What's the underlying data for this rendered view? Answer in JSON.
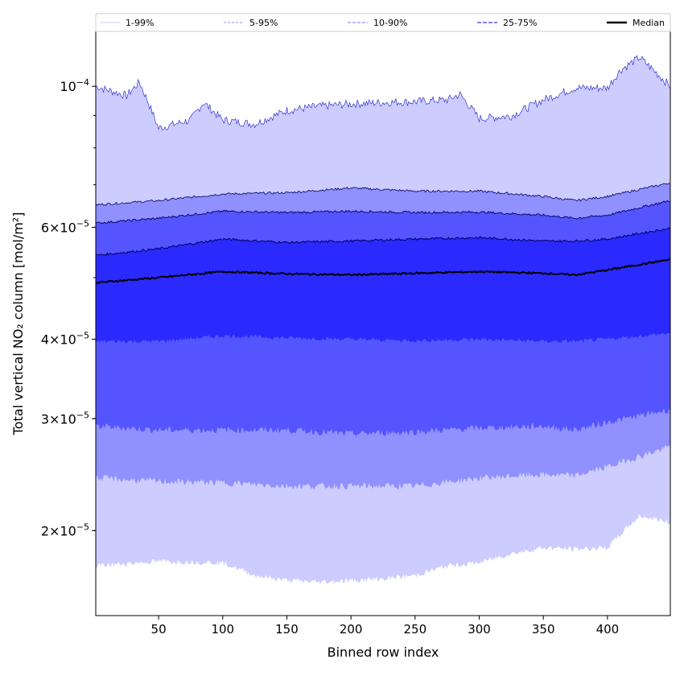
{
  "chart_data": {
    "type": "area",
    "title": "",
    "xlabel": "Binned row index",
    "ylabel": "Total vertical NO₂ column [mol/m²]",
    "yscale": "log",
    "xlim": [
      1,
      449
    ],
    "ylim": [
      1.47e-05,
      0.000122
    ],
    "xticks": [
      50,
      100,
      150,
      200,
      250,
      300,
      350,
      400
    ],
    "yticks": [
      {
        "v": 0.0001,
        "m": "",
        "e": "−4",
        "label": "10^-4"
      },
      {
        "v": 6e-05,
        "m": "6",
        "e": "−5",
        "label": "6×10^-5"
      },
      {
        "v": 4e-05,
        "m": "4",
        "e": "−5",
        "label": "4×10^-5"
      },
      {
        "v": 3e-05,
        "m": "3",
        "e": "−5",
        "label": "3×10^-5"
      },
      {
        "v": 2e-05,
        "m": "2",
        "e": "−5",
        "label": "2×10^-5"
      }
    ],
    "legend": {
      "placement": "top",
      "entries": [
        "1-99%",
        "5-95%",
        "10-90%",
        "25-75%",
        "Median"
      ]
    },
    "colors": {
      "band_1_99": "#ccccff",
      "band_5_95": "#9090ff",
      "band_10_90": "#5555ff",
      "band_25_75": "#2a2aff",
      "median": "#000000",
      "p99_line": "#1a1acc",
      "edge_line": "#000066"
    },
    "series": [
      {
        "name": "p99",
        "x": [
          1,
          25,
          35,
          50,
          75,
          85,
          100,
          125,
          150,
          175,
          200,
          225,
          250,
          275,
          285,
          300,
          325,
          350,
          375,
          400,
          410,
          425,
          449
        ],
        "values": [
          0.0001,
          9.66e-05,
          0.0001015,
          8.59e-05,
          8.85e-05,
          9.43e-05,
          8.85e-05,
          8.72e-05,
          9.16e-05,
          9.3e-05,
          9.38e-05,
          9.43e-05,
          9.46e-05,
          9.52e-05,
          9.71e-05,
          8.9e-05,
          8.98e-05,
          9.52e-05,
          9.94e-05,
          9.94e-05,
          0.000106,
          0.000111,
          0.0001
        ]
      },
      {
        "name": "p95",
        "x": [
          1,
          50,
          100,
          150,
          200,
          250,
          300,
          350,
          375,
          400,
          449
        ],
        "values": [
          6.51e-05,
          6.61e-05,
          6.77e-05,
          6.8e-05,
          6.92e-05,
          6.84e-05,
          6.84e-05,
          6.71e-05,
          6.61e-05,
          6.71e-05,
          7.05e-05
        ]
      },
      {
        "name": "p90",
        "x": [
          1,
          50,
          100,
          150,
          200,
          250,
          300,
          350,
          375,
          400,
          449
        ],
        "values": [
          6.09e-05,
          6.2e-05,
          6.36e-05,
          6.33e-05,
          6.36e-05,
          6.33e-05,
          6.34e-05,
          6.27e-05,
          6.2e-05,
          6.27e-05,
          6.61e-05
        ]
      },
      {
        "name": "p75",
        "x": [
          1,
          50,
          100,
          150,
          200,
          250,
          300,
          350,
          375,
          400,
          449
        ],
        "values": [
          5.42e-05,
          5.55e-05,
          5.75e-05,
          5.68e-05,
          5.71e-05,
          5.75e-05,
          5.78e-05,
          5.71e-05,
          5.71e-05,
          5.75e-05,
          5.98e-05
        ]
      },
      {
        "name": "median",
        "x": [
          1,
          50,
          100,
          150,
          200,
          250,
          300,
          350,
          375,
          400,
          449
        ],
        "values": [
          4.91e-05,
          5e-05,
          5.11e-05,
          5.07e-05,
          5.05e-05,
          5.08e-05,
          5.11e-05,
          5.08e-05,
          5.05e-05,
          5.14e-05,
          5.34e-05
        ]
      },
      {
        "name": "p25",
        "x": [
          1,
          50,
          100,
          150,
          200,
          250,
          300,
          350,
          375,
          400,
          449
        ],
        "values": [
          3.97e-05,
          3.97e-05,
          4.05e-05,
          4.02e-05,
          4e-05,
          3.98e-05,
          4e-05,
          3.97e-05,
          3.97e-05,
          4e-05,
          4.09e-05
        ]
      },
      {
        "name": "p10",
        "x": [
          1,
          50,
          100,
          150,
          200,
          250,
          300,
          350,
          375,
          400,
          449
        ],
        "values": [
          2.92e-05,
          2.88e-05,
          2.88e-05,
          2.88e-05,
          2.84e-05,
          2.86e-05,
          2.9e-05,
          2.92e-05,
          2.88e-05,
          2.96e-05,
          3.1e-05
        ]
      },
      {
        "name": "p5",
        "x": [
          1,
          50,
          100,
          150,
          200,
          250,
          300,
          350,
          375,
          400,
          449
        ],
        "values": [
          2.42e-05,
          2.39e-05,
          2.38e-05,
          2.35e-05,
          2.35e-05,
          2.35e-05,
          2.42e-05,
          2.45e-05,
          2.44e-05,
          2.52e-05,
          2.71e-05
        ]
      },
      {
        "name": "p1",
        "x": [
          1,
          50,
          100,
          125,
          150,
          175,
          200,
          225,
          250,
          275,
          300,
          325,
          350,
          375,
          400,
          425,
          449
        ],
        "values": [
          1.76e-05,
          1.79e-05,
          1.78e-05,
          1.7e-05,
          1.67e-05,
          1.66e-05,
          1.67e-05,
          1.68e-05,
          1.7e-05,
          1.76e-05,
          1.78e-05,
          1.84e-05,
          1.88e-05,
          1.87e-05,
          1.88e-05,
          2.11e-05,
          2.06e-05
        ]
      }
    ]
  }
}
